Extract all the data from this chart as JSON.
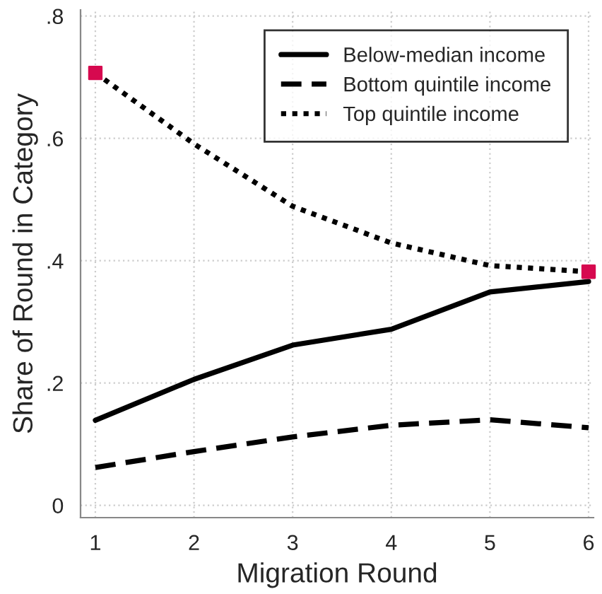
{
  "chart_data": {
    "type": "line",
    "xlabel": "Migration Round",
    "ylabel": "Share of Round in Category",
    "x": [
      1,
      2,
      3,
      4,
      5,
      6
    ],
    "series": [
      {
        "name": "Below-median income",
        "color": "#000000",
        "line_style": "solid",
        "values": [
          0.139,
          0.206,
          0.262,
          0.288,
          0.349,
          0.366
        ]
      },
      {
        "name": "Bottom quintile income",
        "color": "#000000",
        "line_style": "dashed",
        "values": [
          0.062,
          0.088,
          0.112,
          0.131,
          0.14,
          0.127
        ]
      },
      {
        "name": "Top quintile income",
        "color": "#000000",
        "line_style": "dotted",
        "values": [
          0.707,
          0.591,
          0.489,
          0.429,
          0.392,
          0.382
        ]
      },
      {
        "type": "scatter",
        "color": "#d6094f",
        "marker": "square",
        "x": [
          1,
          6
        ],
        "values": [
          0.707,
          0.382
        ]
      }
    ],
    "xlim": [
      0.85,
      6.05
    ],
    "xticks": [
      1,
      2,
      3,
      4,
      5,
      6
    ],
    "ylim": [
      -0.02,
      0.81
    ],
    "yticks": [
      {
        "value": 0,
        "label": "0"
      },
      {
        "value": 0.2,
        "label": ".2"
      },
      {
        "value": 0.4,
        "label": ".4"
      },
      {
        "value": 0.6,
        "label": ".6"
      },
      {
        "value": 0.8,
        "label": ".8"
      }
    ],
    "grid": true,
    "legend": "top right"
  }
}
